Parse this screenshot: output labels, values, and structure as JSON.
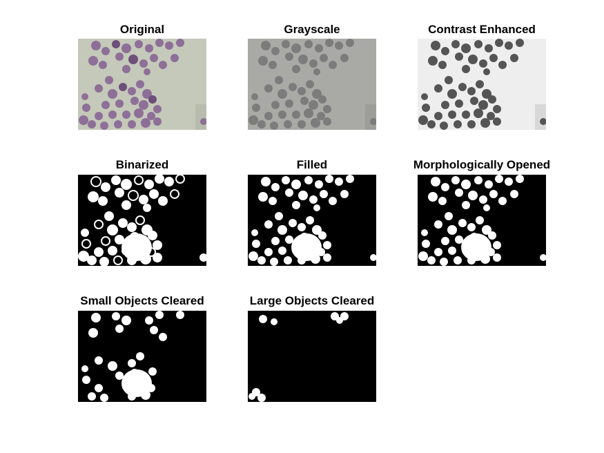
{
  "figure": {
    "panels": [
      {
        "id": "original",
        "title": "Original",
        "style": "color"
      },
      {
        "id": "grayscale",
        "title": "Grayscale",
        "style": "gray"
      },
      {
        "id": "contrast",
        "title": "Contrast Enhanced",
        "style": "contrast"
      },
      {
        "id": "binarized",
        "title": "Binarized",
        "style": "binary-rings"
      },
      {
        "id": "filled",
        "title": "Filled",
        "style": "binary"
      },
      {
        "id": "opened",
        "title": "Morphologically Opened",
        "style": "binary"
      },
      {
        "id": "small-cleared",
        "title": "Small Objects Cleared",
        "style": "binary-small"
      },
      {
        "id": "large-cleared",
        "title": "Large Objects Cleared",
        "style": "binary-large"
      }
    ],
    "colors": {
      "original_bg": "#c4c9b9",
      "original_cell": "#8e6f98",
      "original_cell_dark": "#6d4f7a",
      "gray_bg": "#a9aaa6",
      "gray_cell": "#7c7c7c",
      "contrast_bg": "#eeeeee",
      "contrast_cell": "#555555",
      "binary_bg": "#000000",
      "binary_fg": "#ffffff"
    }
  }
}
